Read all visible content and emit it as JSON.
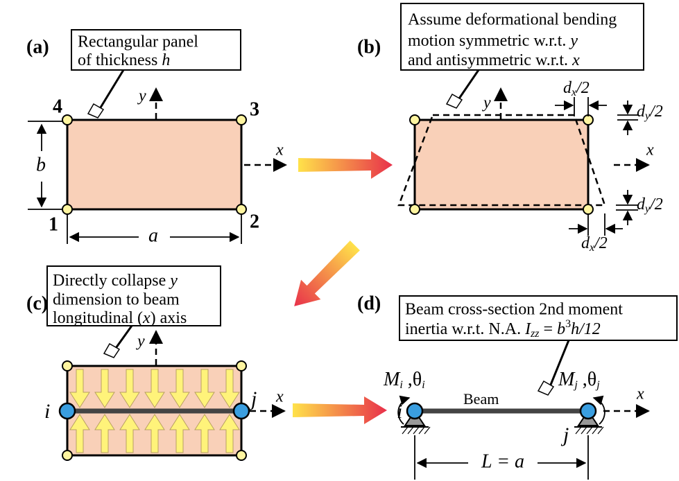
{
  "panel_a": {
    "label": "(a)",
    "callout": [
      [
        "Rectangular panel"
      ],
      [
        "of thickness ",
        "h"
      ]
    ],
    "axis_y": "y",
    "axis_x": "x",
    "corners": [
      "4",
      "3",
      "1",
      "2"
    ],
    "dim_b": "b",
    "dim_a": "a"
  },
  "panel_b": {
    "label": "(b)",
    "callout": [
      [
        "Assume deformational bending"
      ],
      [
        "motion symmetric w.r.t. ",
        "y"
      ],
      [
        "and antisymmetric w.r.t. ",
        "x"
      ]
    ],
    "axis_y": "y",
    "axis_x": "x",
    "dx_top": [
      "d",
      "x",
      "/2"
    ],
    "dy_top": [
      "d",
      "y",
      "/2"
    ],
    "dy_bottom": [
      "d",
      "y",
      "/2"
    ],
    "dx_bottom": [
      "d",
      "x",
      "/2"
    ]
  },
  "panel_c": {
    "label": "(c)",
    "callout": [
      [
        "Directly collapse ",
        "y"
      ],
      [
        "dimension to beam"
      ],
      [
        "longitudinal (",
        "x",
        ") axis"
      ]
    ],
    "axis_y": "y",
    "axis_x": "x",
    "node_i": "i",
    "node_j": "j"
  },
  "panel_d": {
    "label": "(d)",
    "callout": [
      [
        "Beam cross-section 2nd moment"
      ],
      [
        "inertia w.r.t. N.A.  ",
        "I",
        "zz",
        " = ",
        "b",
        "3",
        "h/12"
      ]
    ],
    "moment_i": [
      "M",
      "i",
      " ,θ",
      "i"
    ],
    "moment_j": [
      "M",
      "j",
      " ,θ",
      "j"
    ],
    "beam": "Beam",
    "node_i": "i",
    "node_j": "j",
    "axis_x": "x",
    "dim_l": "L = a"
  }
}
